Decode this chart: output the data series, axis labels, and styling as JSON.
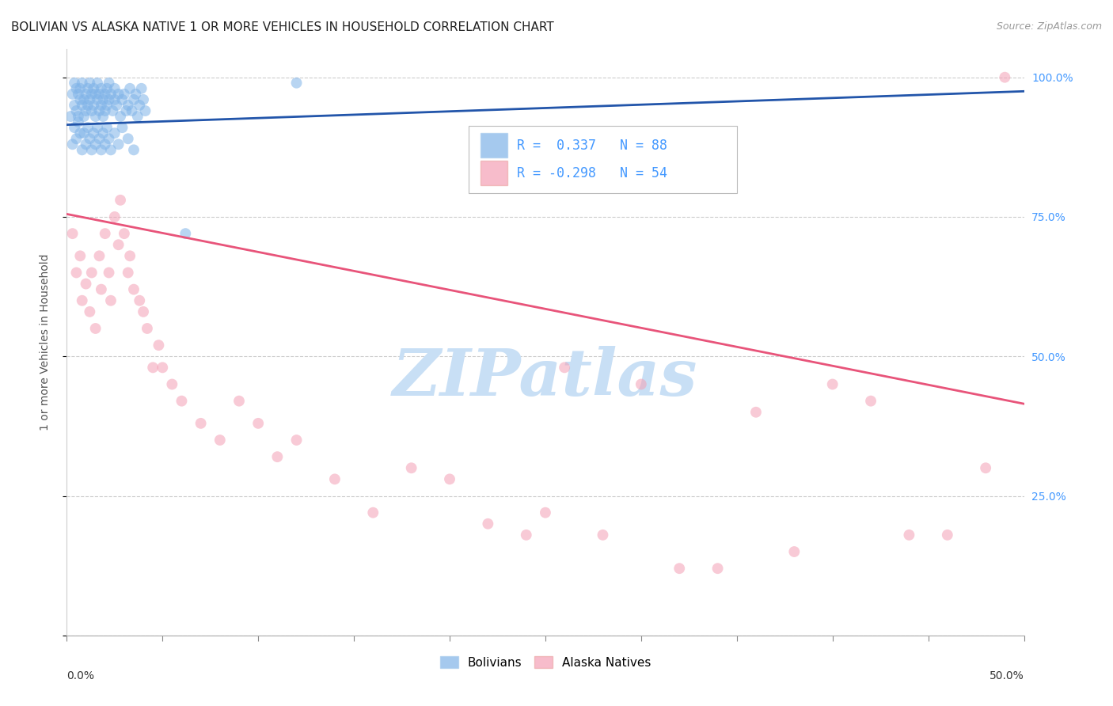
{
  "title": "BOLIVIAN VS ALASKA NATIVE 1 OR MORE VEHICLES IN HOUSEHOLD CORRELATION CHART",
  "source": "Source: ZipAtlas.com",
  "ylabel": "1 or more Vehicles in Household",
  "xmin": 0.0,
  "xmax": 0.5,
  "ymin": 0.0,
  "ymax": 1.05,
  "yticks": [
    0.0,
    0.25,
    0.5,
    0.75,
    1.0
  ],
  "ytick_labels": [
    "",
    "25.0%",
    "50.0%",
    "75.0%",
    "100.0%"
  ],
  "legend_r_blue": "R =  0.337",
  "legend_n_blue": "N = 88",
  "legend_r_pink": "R = -0.298",
  "legend_n_pink": "N = 54",
  "blue_color": "#7FB3E8",
  "pink_color": "#F4A0B5",
  "blue_line_color": "#2255AA",
  "pink_line_color": "#E8547A",
  "watermark": "ZIPatlas",
  "watermark_color": "#c8dff5",
  "title_fontsize": 11,
  "axis_label_fontsize": 10,
  "tick_label_color_right": "#4499FF",
  "background_color": "#ffffff",
  "blue_scatter_x": [
    0.002,
    0.003,
    0.004,
    0.004,
    0.005,
    0.005,
    0.006,
    0.006,
    0.007,
    0.007,
    0.008,
    0.008,
    0.009,
    0.009,
    0.01,
    0.01,
    0.011,
    0.011,
    0.012,
    0.012,
    0.013,
    0.013,
    0.014,
    0.014,
    0.015,
    0.015,
    0.016,
    0.016,
    0.017,
    0.017,
    0.018,
    0.018,
    0.019,
    0.019,
    0.02,
    0.02,
    0.021,
    0.021,
    0.022,
    0.022,
    0.023,
    0.024,
    0.025,
    0.025,
    0.026,
    0.027,
    0.028,
    0.029,
    0.03,
    0.031,
    0.032,
    0.033,
    0.034,
    0.035,
    0.036,
    0.037,
    0.038,
    0.039,
    0.04,
    0.041,
    0.003,
    0.004,
    0.005,
    0.006,
    0.007,
    0.008,
    0.009,
    0.01,
    0.011,
    0.012,
    0.013,
    0.014,
    0.015,
    0.016,
    0.017,
    0.018,
    0.019,
    0.02,
    0.021,
    0.022,
    0.023,
    0.025,
    0.027,
    0.029,
    0.032,
    0.035,
    0.062,
    0.12
  ],
  "blue_scatter_y": [
    0.93,
    0.97,
    0.99,
    0.95,
    0.98,
    0.94,
    0.97,
    0.93,
    0.96,
    0.98,
    0.95,
    0.99,
    0.96,
    0.93,
    0.97,
    0.94,
    0.98,
    0.95,
    0.96,
    0.99,
    0.97,
    0.94,
    0.98,
    0.95,
    0.97,
    0.93,
    0.96,
    0.99,
    0.94,
    0.97,
    0.95,
    0.98,
    0.96,
    0.93,
    0.97,
    0.94,
    0.98,
    0.95,
    0.96,
    0.99,
    0.97,
    0.94,
    0.96,
    0.98,
    0.95,
    0.97,
    0.93,
    0.96,
    0.97,
    0.94,
    0.95,
    0.98,
    0.94,
    0.96,
    0.97,
    0.93,
    0.95,
    0.98,
    0.96,
    0.94,
    0.88,
    0.91,
    0.89,
    0.92,
    0.9,
    0.87,
    0.9,
    0.88,
    0.91,
    0.89,
    0.87,
    0.9,
    0.88,
    0.91,
    0.89,
    0.87,
    0.9,
    0.88,
    0.91,
    0.89,
    0.87,
    0.9,
    0.88,
    0.91,
    0.89,
    0.87,
    0.72,
    0.99
  ],
  "pink_scatter_x": [
    0.003,
    0.005,
    0.007,
    0.008,
    0.01,
    0.012,
    0.013,
    0.015,
    0.017,
    0.018,
    0.02,
    0.022,
    0.023,
    0.025,
    0.027,
    0.028,
    0.03,
    0.032,
    0.033,
    0.035,
    0.038,
    0.04,
    0.042,
    0.045,
    0.048,
    0.05,
    0.055,
    0.06,
    0.07,
    0.08,
    0.09,
    0.1,
    0.11,
    0.12,
    0.14,
    0.16,
    0.18,
    0.2,
    0.22,
    0.24,
    0.25,
    0.26,
    0.28,
    0.3,
    0.32,
    0.34,
    0.36,
    0.38,
    0.4,
    0.42,
    0.44,
    0.46,
    0.48,
    0.49
  ],
  "pink_scatter_y": [
    0.72,
    0.65,
    0.68,
    0.6,
    0.63,
    0.58,
    0.65,
    0.55,
    0.68,
    0.62,
    0.72,
    0.65,
    0.6,
    0.75,
    0.7,
    0.78,
    0.72,
    0.65,
    0.68,
    0.62,
    0.6,
    0.58,
    0.55,
    0.48,
    0.52,
    0.48,
    0.45,
    0.42,
    0.38,
    0.35,
    0.42,
    0.38,
    0.32,
    0.35,
    0.28,
    0.22,
    0.3,
    0.28,
    0.2,
    0.18,
    0.22,
    0.48,
    0.18,
    0.45,
    0.12,
    0.12,
    0.4,
    0.15,
    0.45,
    0.42,
    0.18,
    0.18,
    0.3,
    1.0
  ],
  "blue_trendline_x": [
    0.0,
    0.5
  ],
  "blue_trendline_y": [
    0.915,
    0.975
  ],
  "pink_trendline_x": [
    0.0,
    0.5
  ],
  "pink_trendline_y": [
    0.755,
    0.415
  ]
}
